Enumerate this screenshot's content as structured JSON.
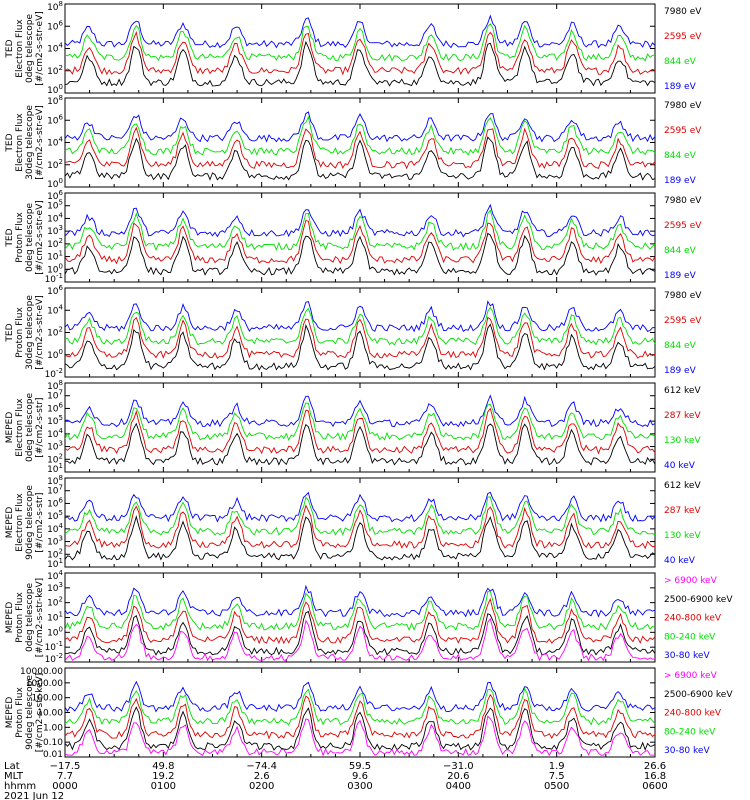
{
  "colors": {
    "black": "#000000",
    "red": "#e00000",
    "green": "#00e000",
    "blue": "#0000ff",
    "magenta": "#ff00ff"
  },
  "chart_data": [
    {
      "type": "line",
      "ylabel": [
        "TED",
        "Electron Flux",
        "0deg telescope",
        "[#/cm2-s-str-eV]"
      ],
      "yticks": [
        "10^0",
        "10^2",
        "10^4",
        "10^6",
        "10^8"
      ],
      "ylim_exp": [
        0,
        8
      ],
      "legend": [
        {
          "label": "7980 eV",
          "color": "black"
        },
        {
          "label": "2595 eV",
          "color": "red"
        },
        {
          "label": "844 eV",
          "color": "green"
        },
        {
          "label": "189 eV",
          "color": "blue"
        }
      ]
    },
    {
      "type": "line",
      "ylabel": [
        "TED",
        "Electron Flux",
        "30deg telescope",
        "[#/cm2-s-str-eV]"
      ],
      "yticks": [
        "10^0",
        "10^2",
        "10^4",
        "10^6",
        "10^8"
      ],
      "ylim_exp": [
        0,
        8
      ],
      "legend": [
        {
          "label": "7980 eV",
          "color": "black"
        },
        {
          "label": "2595 eV",
          "color": "red"
        },
        {
          "label": "844 eV",
          "color": "green"
        },
        {
          "label": "189 eV",
          "color": "blue"
        }
      ]
    },
    {
      "type": "line",
      "ylabel": [
        "TED",
        "Proton Flux",
        "0deg telescope",
        "[#/cm2-s-str-eV]"
      ],
      "yticks": [
        "10^-1",
        "10^0",
        "10^1",
        "10^2",
        "10^3",
        "10^4",
        "10^5",
        "10^6"
      ],
      "ylim_exp": [
        -1,
        6
      ],
      "legend": [
        {
          "label": "7980 eV",
          "color": "black"
        },
        {
          "label": "2595 eV",
          "color": "red"
        },
        {
          "label": "844 eV",
          "color": "green"
        },
        {
          "label": "189 eV",
          "color": "blue"
        }
      ]
    },
    {
      "type": "line",
      "ylabel": [
        "TED",
        "Proton Flux",
        "30deg telescope",
        "[#/cm2-s-str-eV]"
      ],
      "yticks": [
        "10^-2",
        "10^0",
        "10^2",
        "10^4",
        "10^6"
      ],
      "ylim_exp": [
        -2,
        6
      ],
      "legend": [
        {
          "label": "7980 eV",
          "color": "black"
        },
        {
          "label": "2595 eV",
          "color": "red"
        },
        {
          "label": "844 eV",
          "color": "green"
        },
        {
          "label": "189 eV",
          "color": "blue"
        }
      ]
    },
    {
      "type": "line",
      "ylabel": [
        "MEPED",
        "Electron Flux",
        "0deg telescope",
        "[#/cm2-s-str]"
      ],
      "yticks": [
        "10^1",
        "10^2",
        "10^3",
        "10^4",
        "10^5",
        "10^6",
        "10^7",
        "10^8"
      ],
      "ylim_exp": [
        1,
        8
      ],
      "legend": [
        {
          "label": "612 keV",
          "color": "black"
        },
        {
          "label": "287 keV",
          "color": "red"
        },
        {
          "label": "130 keV",
          "color": "green"
        },
        {
          "label": "40 keV",
          "color": "blue"
        }
      ]
    },
    {
      "type": "line",
      "ylabel": [
        "MEPED",
        "Electron Flux",
        "90deg telescope",
        "[#/cm2-s-str]"
      ],
      "yticks": [
        "10^1",
        "10^2",
        "10^3",
        "10^4",
        "10^5",
        "10^6",
        "10^7",
        "10^8"
      ],
      "ylim_exp": [
        1,
        8
      ],
      "legend": [
        {
          "label": "612 keV",
          "color": "black"
        },
        {
          "label": "287 keV",
          "color": "red"
        },
        {
          "label": "130 keV",
          "color": "green"
        },
        {
          "label": "40 keV",
          "color": "blue"
        }
      ]
    },
    {
      "type": "line",
      "ylabel": [
        "MEPED",
        "Proton Flux",
        "0deg telescope",
        "[#/cm2-s-str-keV]"
      ],
      "yticks": [
        "10^-2",
        "10^-1",
        "10^0",
        "10^1",
        "10^2",
        "10^3",
        "10^4"
      ],
      "ylim_exp": [
        -2,
        4
      ],
      "legend": [
        {
          "label": "> 6900 keV",
          "color": "magenta"
        },
        {
          "label": "2500-6900 keV",
          "color": "black"
        },
        {
          "label": "240-800 keV",
          "color": "red"
        },
        {
          "label": "80-240 keV",
          "color": "green"
        },
        {
          "label": "30-80 keV",
          "color": "blue"
        }
      ]
    },
    {
      "type": "line",
      "ylabel": [
        "MEPED",
        "Proton Flux",
        "90deg telescope",
        "[#/cm2-s-str-keV]"
      ],
      "yticks": [
        "0.01",
        "0.10",
        "1.00",
        "10.00",
        "100.00",
        "1000.00",
        "10000.00"
      ],
      "ylim_exp": [
        -2,
        4
      ],
      "legend": [
        {
          "label": "> 6900 keV",
          "color": "magenta"
        },
        {
          "label": "2500-6900 keV",
          "color": "black"
        },
        {
          "label": "240-800 keV",
          "color": "red"
        },
        {
          "label": "80-240 keV",
          "color": "green"
        },
        {
          "label": "30-80 keV",
          "color": "blue"
        }
      ]
    }
  ],
  "x_axis": {
    "row_labels": [
      "Lat",
      "MLT",
      "hhmm"
    ],
    "date": "2021 Jun 12",
    "ticks": [
      {
        "lat": "−17.5",
        "mlt": "7.7",
        "hhmm": "0000"
      },
      {
        "lat": "49.8",
        "mlt": "19.2",
        "hhmm": "0100"
      },
      {
        "lat": "−74.4",
        "mlt": "2.6",
        "hhmm": "0200"
      },
      {
        "lat": "59.5",
        "mlt": "9.6",
        "hhmm": "0300"
      },
      {
        "lat": "−31.0",
        "mlt": "20.6",
        "hhmm": "0400"
      },
      {
        "lat": "1.9",
        "mlt": "7.5",
        "hhmm": "0500"
      },
      {
        "lat": "26.6",
        "mlt": "16.8",
        "hhmm": "0600"
      }
    ]
  }
}
